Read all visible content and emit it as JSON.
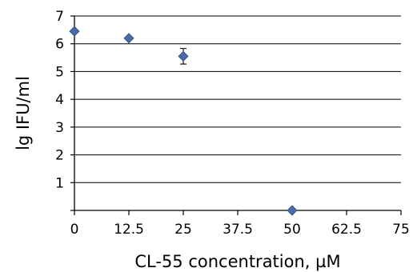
{
  "chart_data": {
    "type": "scatter",
    "title": "",
    "xlabel": "CL-55 concentration, µM",
    "ylabel": "lg IFU/ml",
    "xlim": [
      0,
      75
    ],
    "ylim": [
      0,
      7
    ],
    "x_ticks": [
      0,
      12.5,
      25,
      37.5,
      50,
      62.5,
      75
    ],
    "x_tick_labels": [
      "0",
      "12.5",
      "25",
      "37.5",
      "50",
      "62.5",
      "75"
    ],
    "y_ticks": [
      1,
      2,
      3,
      4,
      5,
      6,
      7
    ],
    "y_tick_labels": [
      "1",
      "2",
      "3",
      "4",
      "5",
      "6",
      "7"
    ],
    "grid": "horizontal",
    "legend": "none",
    "marker": "diamond",
    "marker_color": "#4a6aa8",
    "series": [
      {
        "points": [
          {
            "x": 0,
            "y": 6.45,
            "error": 0
          },
          {
            "x": 12.5,
            "y": 6.2,
            "error": 0
          },
          {
            "x": 25,
            "y": 5.55,
            "error": 0.28
          },
          {
            "x": 50,
            "y": 0,
            "error": 0
          }
        ]
      }
    ]
  }
}
